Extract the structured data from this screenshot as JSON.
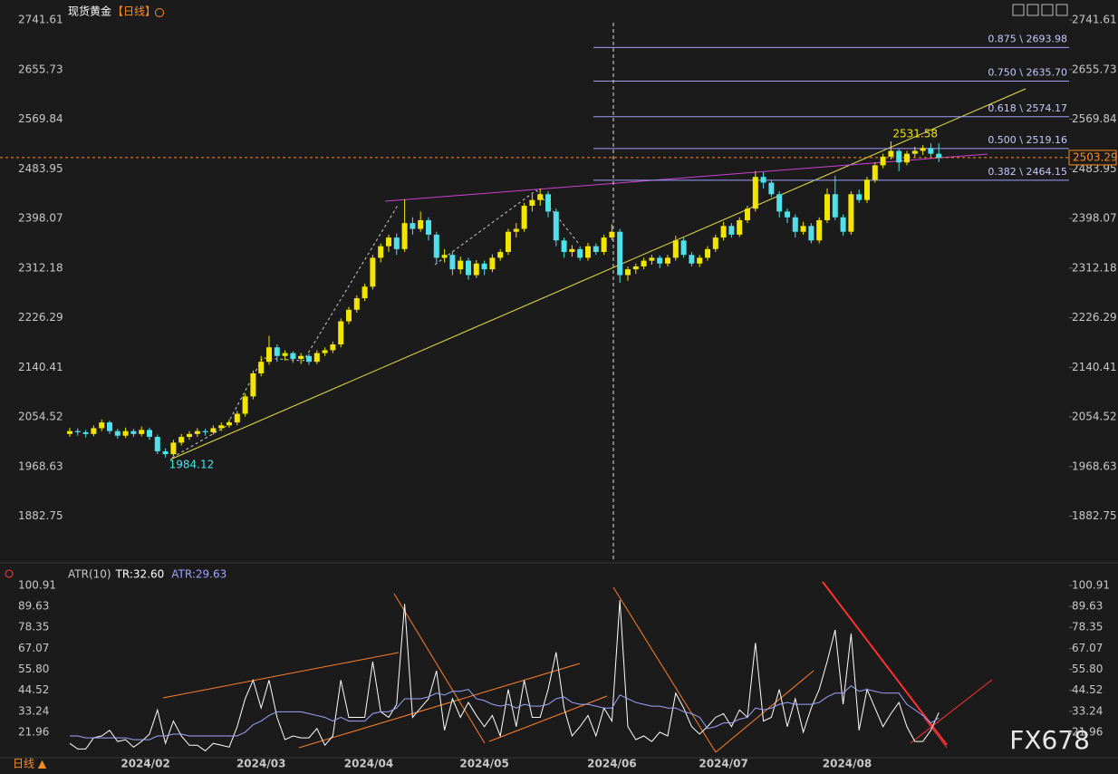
{
  "chart_data": [
    {
      "type": "candlestick",
      "title": "现货黄金",
      "period": "【日线】",
      "ylim": [
        1811.4,
        2768.3
      ],
      "yticks": [
        2741.61,
        2655.73,
        2569.84,
        2483.95,
        2398.07,
        2312.18,
        2226.29,
        2140.41,
        2054.52,
        1968.63,
        1882.75
      ],
      "up_color": "#f2e600",
      "down_color": "#4fe0ea",
      "candles": [
        [
          2025,
          2036,
          2020,
          2030
        ],
        [
          2030,
          2035,
          2022,
          2028
        ],
        [
          2028,
          2032,
          2019,
          2025
        ],
        [
          2025,
          2040,
          2021,
          2035
        ],
        [
          2035,
          2050,
          2030,
          2045
        ],
        [
          2045,
          2048,
          2025,
          2030
        ],
        [
          2030,
          2034,
          2017,
          2022
        ],
        [
          2022,
          2036,
          2018,
          2030
        ],
        [
          2030,
          2034,
          2020,
          2025
        ],
        [
          2025,
          2038,
          2021,
          2032
        ],
        [
          2032,
          2036,
          2015,
          2020
        ],
        [
          2020,
          2024,
          1990,
          1995
        ],
        [
          1995,
          2000,
          1984.12,
          1990
        ],
        [
          1990,
          2015,
          1987,
          2010
        ],
        [
          2010,
          2025,
          2005,
          2020
        ],
        [
          2020,
          2030,
          2015,
          2025
        ],
        [
          2025,
          2035,
          2020,
          2030
        ],
        [
          2030,
          2034,
          2022,
          2028
        ],
        [
          2028,
          2040,
          2024,
          2035
        ],
        [
          2035,
          2045,
          2030,
          2040
        ],
        [
          2040,
          2050,
          2036,
          2045
        ],
        [
          2045,
          2065,
          2040,
          2060
        ],
        [
          2060,
          2095,
          2055,
          2090
        ],
        [
          2090,
          2135,
          2085,
          2130
        ],
        [
          2130,
          2160,
          2125,
          2150
        ],
        [
          2150,
          2195,
          2145,
          2175
        ],
        [
          2175,
          2180,
          2150,
          2160
        ],
        [
          2160,
          2170,
          2152,
          2165
        ],
        [
          2165,
          2168,
          2148,
          2155
        ],
        [
          2155,
          2165,
          2146,
          2160
        ],
        [
          2160,
          2164,
          2145,
          2150
        ],
        [
          2150,
          2170,
          2146,
          2165
        ],
        [
          2165,
          2175,
          2160,
          2170
        ],
        [
          2170,
          2185,
          2165,
          2180
        ],
        [
          2180,
          2225,
          2175,
          2220
        ],
        [
          2220,
          2245,
          2215,
          2240
        ],
        [
          2240,
          2265,
          2235,
          2260
        ],
        [
          2260,
          2285,
          2255,
          2280
        ],
        [
          2280,
          2335,
          2275,
          2330
        ],
        [
          2330,
          2355,
          2322,
          2350
        ],
        [
          2350,
          2370,
          2340,
          2365
        ],
        [
          2365,
          2372,
          2335,
          2345
        ],
        [
          2345,
          2431,
          2340,
          2390
        ],
        [
          2390,
          2400,
          2370,
          2380
        ],
        [
          2380,
          2410,
          2375,
          2395
        ],
        [
          2395,
          2400,
          2360,
          2370
        ],
        [
          2370,
          2375,
          2320,
          2330
        ],
        [
          2330,
          2345,
          2322,
          2335
        ],
        [
          2335,
          2340,
          2300,
          2310
        ],
        [
          2310,
          2332,
          2302,
          2325
        ],
        [
          2325,
          2330,
          2292,
          2300
        ],
        [
          2300,
          2326,
          2295,
          2320
        ],
        [
          2320,
          2325,
          2300,
          2310
        ],
        [
          2310,
          2336,
          2305,
          2330
        ],
        [
          2330,
          2345,
          2325,
          2340
        ],
        [
          2340,
          2380,
          2335,
          2375
        ],
        [
          2375,
          2390,
          2365,
          2380
        ],
        [
          2380,
          2425,
          2375,
          2420
        ],
        [
          2420,
          2440,
          2410,
          2430
        ],
        [
          2430,
          2450,
          2420,
          2440
        ],
        [
          2440,
          2445,
          2400,
          2410
        ],
        [
          2410,
          2415,
          2350,
          2360
        ],
        [
          2360,
          2365,
          2330,
          2340
        ],
        [
          2340,
          2352,
          2332,
          2345
        ],
        [
          2345,
          2350,
          2325,
          2330
        ],
        [
          2330,
          2356,
          2325,
          2350
        ],
        [
          2350,
          2355,
          2335,
          2340
        ],
        [
          2340,
          2370,
          2335,
          2365
        ],
        [
          2365,
          2388,
          2360,
          2375
        ],
        [
          2375,
          2380,
          2287,
          2300
        ],
        [
          2300,
          2315,
          2290,
          2310
        ],
        [
          2310,
          2320,
          2302,
          2315
        ],
        [
          2315,
          2330,
          2310,
          2325
        ],
        [
          2325,
          2335,
          2318,
          2330
        ],
        [
          2330,
          2334,
          2312,
          2320
        ],
        [
          2320,
          2335,
          2315,
          2330
        ],
        [
          2330,
          2368,
          2325,
          2360
        ],
        [
          2360,
          2365,
          2330,
          2335
        ],
        [
          2335,
          2340,
          2315,
          2320
        ],
        [
          2320,
          2335,
          2314,
          2330
        ],
        [
          2330,
          2350,
          2325,
          2345
        ],
        [
          2345,
          2370,
          2340,
          2365
        ],
        [
          2365,
          2392,
          2360,
          2385
        ],
        [
          2385,
          2390,
          2365,
          2370
        ],
        [
          2370,
          2400,
          2366,
          2395
        ],
        [
          2395,
          2420,
          2390,
          2415
        ],
        [
          2415,
          2480,
          2410,
          2470
        ],
        [
          2470,
          2478,
          2450,
          2460
        ],
        [
          2460,
          2465,
          2435,
          2440
        ],
        [
          2440,
          2445,
          2400,
          2410
        ],
        [
          2410,
          2415,
          2390,
          2400
        ],
        [
          2400,
          2405,
          2365,
          2375
        ],
        [
          2375,
          2392,
          2370,
          2385
        ],
        [
          2385,
          2390,
          2355,
          2360
        ],
        [
          2360,
          2400,
          2355,
          2395
        ],
        [
          2395,
          2450,
          2390,
          2440
        ],
        [
          2440,
          2472,
          2395,
          2400
        ],
        [
          2400,
          2405,
          2368,
          2375
        ],
        [
          2375,
          2445,
          2370,
          2440
        ],
        [
          2440,
          2448,
          2425,
          2430
        ],
        [
          2430,
          2470,
          2425,
          2465
        ],
        [
          2465,
          2495,
          2460,
          2490
        ],
        [
          2490,
          2510,
          2485,
          2505
        ],
        [
          2505,
          2531.58,
          2500,
          2515
        ],
        [
          2515,
          2518,
          2480,
          2495
        ],
        [
          2495,
          2515,
          2490,
          2510
        ],
        [
          2510,
          2522,
          2505,
          2515
        ],
        [
          2515,
          2525,
          2508,
          2520
        ],
        [
          2520,
          2528,
          2505,
          2510
        ],
        [
          2510,
          2528,
          2495.4,
          2503.29
        ]
      ],
      "fib_levels": [
        {
          "value": 2693.98,
          "label": "0.875 \\ 2693.98"
        },
        {
          "value": 2635.7,
          "label": "0.750 \\ 2635.70"
        },
        {
          "value": 2574.17,
          "label": "0.618 \\ 2574.17"
        },
        {
          "value": 2519.16,
          "label": "0.500 \\ 2519.16"
        },
        {
          "value": 2464.15,
          "label": "0.382 \\ 2464.15"
        }
      ]
    },
    {
      "type": "line",
      "title": "ATR(10)",
      "ylim": [
        8.8,
        103.8
      ],
      "yticks": [
        100.91,
        89.63,
        78.35,
        67.07,
        {
          "value": 55.8,
          "label": "55.80"
        },
        44.52,
        33.24,
        21.96
      ],
      "xticks": [
        {
          "value": 9.5,
          "label": "2024/02"
        },
        {
          "value": 24,
          "label": "2024/03"
        },
        {
          "value": 37.5,
          "label": "2024/04"
        },
        {
          "value": 52,
          "label": "2024/05"
        },
        {
          "value": 68,
          "label": "2024/06"
        },
        {
          "value": 82,
          "label": "2024/07"
        },
        {
          "value": 97.5,
          "label": "2024/08"
        }
      ],
      "series": [
        {
          "name": "TR:32.60",
          "color": "#ffffff",
          "values": [
            16,
            13,
            13,
            19,
            20,
            23,
            17,
            18,
            14,
            17,
            21,
            34,
            16,
            28,
            20,
            15,
            15,
            12,
            16,
            15,
            14,
            25,
            40,
            50,
            35,
            50,
            30,
            18,
            20,
            19,
            19,
            24,
            15,
            20,
            50,
            30,
            30,
            30,
            60,
            33,
            30,
            37,
            91,
            30,
            35,
            40,
            55,
            23,
            40,
            30,
            38,
            31,
            25,
            31,
            20,
            45,
            25,
            50,
            30,
            30,
            45,
            65,
            35,
            20,
            25,
            31,
            20,
            35,
            28,
            93,
            25,
            18,
            20,
            17,
            22,
            20,
            43,
            35,
            25,
            21,
            25,
            30,
            32,
            25,
            34,
            30,
            70,
            28,
            30,
            45,
            25,
            40,
            22,
            35,
            45,
            60,
            77,
            37,
            75,
            23,
            45,
            35,
            25,
            32,
            38,
            25,
            17,
            17,
            23,
            32.6
          ]
        },
        {
          "name": "ATR:29.63",
          "color": "#9fa4ff",
          "values": [
            20,
            20,
            19,
            19,
            19,
            19,
            19,
            19,
            18,
            18,
            18,
            20,
            20,
            21,
            21,
            20,
            20,
            20,
            20,
            20,
            20,
            20,
            22,
            26,
            28,
            31,
            33,
            33,
            33,
            33,
            32,
            31,
            30,
            28,
            30,
            28,
            28,
            28,
            32,
            33,
            33,
            35,
            40,
            40,
            40,
            41,
            43,
            42,
            44,
            44,
            45,
            40,
            39,
            37,
            36,
            37,
            35,
            37,
            36,
            36,
            37,
            40,
            41,
            38,
            37,
            37,
            36,
            35,
            35,
            42,
            40,
            38,
            37,
            36,
            36,
            35,
            35,
            33,
            32,
            30,
            24,
            25,
            27,
            27,
            29,
            30,
            35,
            34,
            35,
            37,
            38,
            37,
            37,
            37,
            38,
            41,
            43,
            43,
            47,
            44,
            45,
            44,
            43,
            43,
            43,
            37,
            34,
            31,
            27,
            29.63
          ]
        }
      ]
    }
  ],
  "footer": "日线 ▲",
  "watermark": "FX678"
}
